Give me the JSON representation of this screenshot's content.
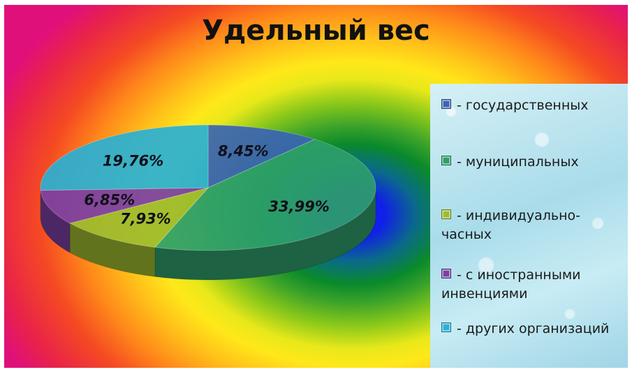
{
  "chart_data": {
    "type": "pie",
    "title": "Удельный вес",
    "slices": [
      {
        "name": "- государственных",
        "value": 8.45,
        "label": "8,45%",
        "color": "#3b64b2"
      },
      {
        "name": "- муниципальных",
        "value": 33.99,
        "label": "33,99%",
        "color": "#2e9e6a"
      },
      {
        "name": "- индивидуально-часных",
        "value": 7.93,
        "label": "7,93%",
        "color": "#9dbb2e"
      },
      {
        "name": "- с иностранными инвенциями",
        "value": 6.85,
        "label": "6,85%",
        "color": "#7a3fa5"
      },
      {
        "name": "- других организаций",
        "value": 19.76,
        "label": "19,76%",
        "color": "#2ab0d4"
      }
    ],
    "legend_position": "right"
  },
  "legend": {
    "items": [
      {
        "line1": "- государственных",
        "line2": ""
      },
      {
        "line1": "- муниципальных",
        "line2": ""
      },
      {
        "line1": "- индивидуально-",
        "line2": "часных"
      },
      {
        "line1": "- с иностранными",
        "line2": "инвенциями"
      },
      {
        "line1": "- других организаций",
        "line2": ""
      }
    ]
  }
}
